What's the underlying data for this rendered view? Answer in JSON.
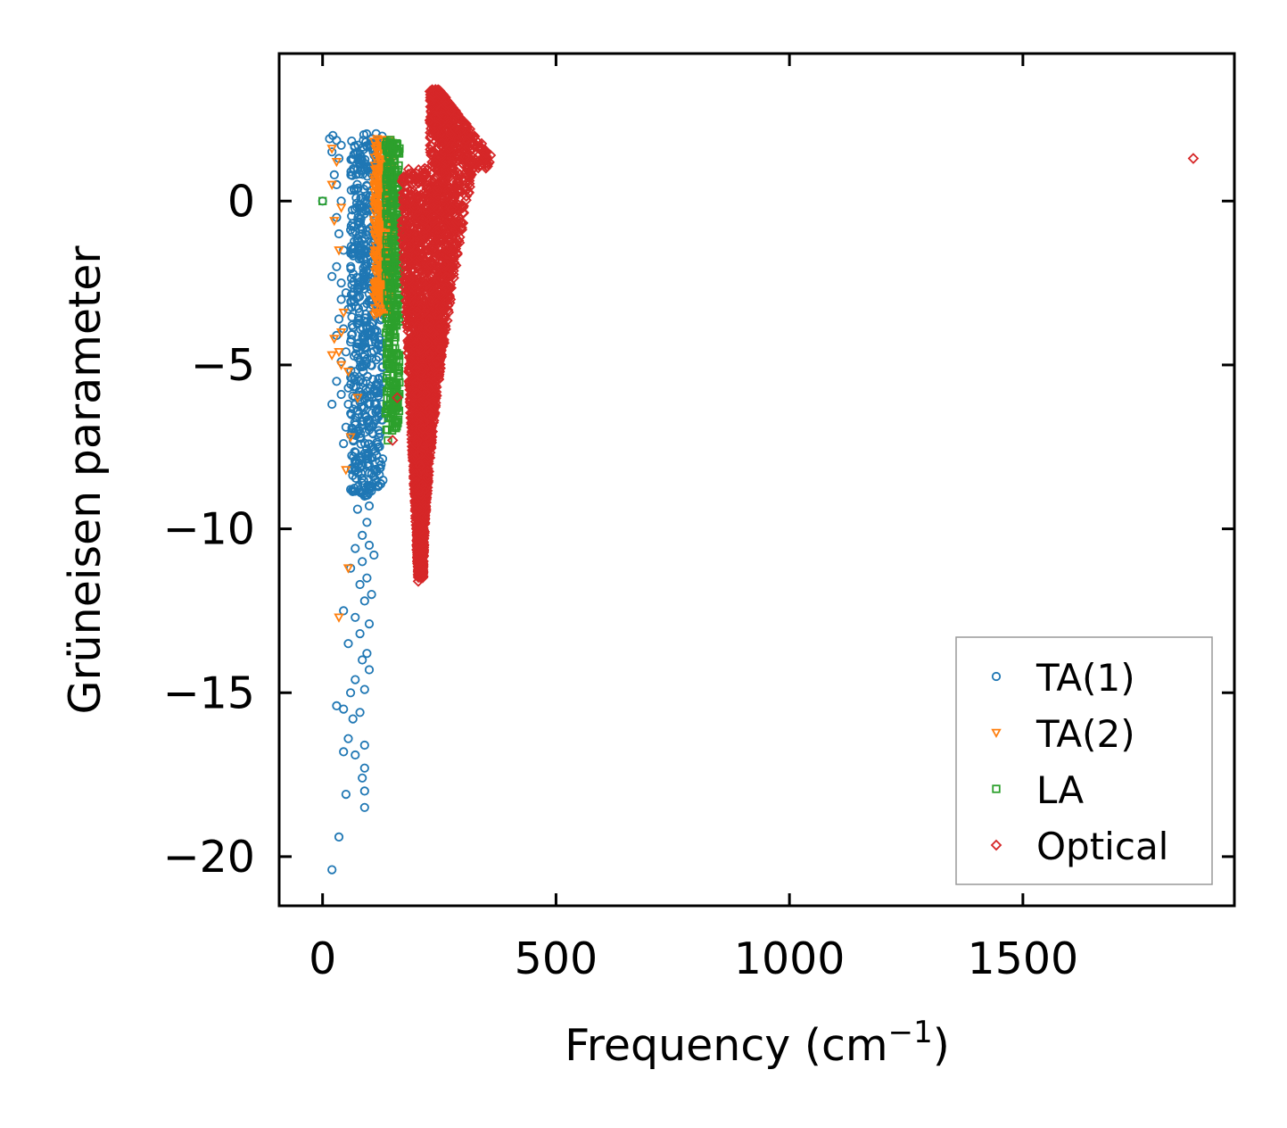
{
  "chart_data": {
    "type": "scatter",
    "title": "",
    "xlabel": "Frequency (cm",
    "xlabel_sup": "−1",
    "xlabel_close": ")",
    "ylabel": "Grüneisen parameter",
    "xlim": [
      -93,
      1953
    ],
    "ylim": [
      -21.5,
      4.5
    ],
    "xticks": [
      0,
      500,
      1000,
      1500
    ],
    "xtick_labels": [
      "0",
      "500",
      "1000",
      "1500"
    ],
    "yticks": [
      0,
      -5,
      -10,
      -15,
      -20
    ],
    "ytick_labels": [
      "0",
      "−5",
      "−10",
      "−15",
      "−20"
    ],
    "grid": false,
    "legend_position": "lower-right",
    "series": [
      {
        "name": "TA(1)",
        "label": "TA(1)",
        "marker": "circle",
        "color": "#1f77b4",
        "points": [
          [
            0,
            0
          ],
          [
            15,
            1.9
          ],
          [
            22,
            2.0
          ],
          [
            30,
            1.85
          ],
          [
            40,
            1.7
          ],
          [
            20,
            1.5
          ],
          [
            35,
            1.3
          ],
          [
            25,
            0.8
          ],
          [
            30,
            0.5
          ],
          [
            40,
            0.0
          ],
          [
            30,
            -0.5
          ],
          [
            35,
            -1.0
          ],
          [
            45,
            -1.5
          ],
          [
            30,
            -2.0
          ],
          [
            20,
            -2.3
          ],
          [
            40,
            -2.5
          ],
          [
            50,
            -2.8
          ],
          [
            40,
            -3.0
          ],
          [
            55,
            -3.3
          ],
          [
            35,
            -3.6
          ],
          [
            45,
            -3.9
          ],
          [
            30,
            -4.1
          ],
          [
            60,
            -4.3
          ],
          [
            50,
            -4.6
          ],
          [
            40,
            -4.9
          ],
          [
            70,
            -5.2
          ],
          [
            30,
            -5.5
          ],
          [
            55,
            -5.7
          ],
          [
            40,
            -5.9
          ],
          [
            20,
            -6.2
          ],
          [
            55,
            -6.2
          ],
          [
            70,
            -6.6
          ],
          [
            50,
            -6.9
          ],
          [
            80,
            -7.2
          ],
          [
            45,
            -7.4
          ],
          [
            90,
            -7.7
          ],
          [
            70,
            -8.0
          ],
          [
            100,
            -8.3
          ],
          [
            85,
            -8.6
          ],
          [
            60,
            -8.8
          ],
          [
            90,
            -9.0
          ],
          [
            100,
            -9.3
          ],
          [
            75,
            -9.4
          ],
          [
            95,
            -9.8
          ],
          [
            85,
            -10.2
          ],
          [
            100,
            -10.5
          ],
          [
            70,
            -10.6
          ],
          [
            110,
            -10.8
          ],
          [
            85,
            -11.0
          ],
          [
            60,
            -11.2
          ],
          [
            95,
            -11.5
          ],
          [
            80,
            -11.7
          ],
          [
            105,
            -12.0
          ],
          [
            90,
            -12.2
          ],
          [
            45,
            -12.5
          ],
          [
            70,
            -12.7
          ],
          [
            100,
            -12.9
          ],
          [
            80,
            -13.2
          ],
          [
            55,
            -13.5
          ],
          [
            95,
            -13.8
          ],
          [
            85,
            -14.0
          ],
          [
            100,
            -14.3
          ],
          [
            70,
            -14.6
          ],
          [
            90,
            -14.9
          ],
          [
            60,
            -15.0
          ],
          [
            30,
            -15.4
          ],
          [
            45,
            -15.5
          ],
          [
            80,
            -15.6
          ],
          [
            65,
            -15.8
          ],
          [
            55,
            -16.4
          ],
          [
            90,
            -16.6
          ],
          [
            45,
            -16.8
          ],
          [
            70,
            -16.9
          ],
          [
            90,
            -17.3
          ],
          [
            85,
            -17.6
          ],
          [
            90,
            -18.0
          ],
          [
            50,
            -18.1
          ],
          [
            90,
            -18.5
          ],
          [
            35,
            -19.4
          ],
          [
            20,
            -20.4
          ]
        ],
        "band": {
          "x_from": 60,
          "x_to": 130,
          "y_from": -9.0,
          "y_to": 2.1,
          "count": 600
        }
      },
      {
        "name": "TA(2)",
        "label": "TA(2)",
        "marker": "triangle-down",
        "color": "#ff7f0e",
        "points": [
          [
            20,
            1.6
          ],
          [
            30,
            1.2
          ],
          [
            20,
            0.5
          ],
          [
            40,
            -0.2
          ],
          [
            25,
            -0.6
          ],
          [
            35,
            -1.5
          ],
          [
            45,
            -3.4
          ],
          [
            40,
            -4.0
          ],
          [
            25,
            -4.2
          ],
          [
            35,
            -4.6
          ],
          [
            20,
            -4.7
          ],
          [
            40,
            -5.0
          ],
          [
            55,
            -5.2
          ],
          [
            75,
            -6.0
          ],
          [
            60,
            -7.2
          ],
          [
            50,
            -8.2
          ],
          [
            55,
            -11.2
          ],
          [
            35,
            -12.7
          ]
        ],
        "band": {
          "x_from": 110,
          "x_to": 150,
          "y_from": -3.5,
          "y_to": 1.9,
          "count": 350
        }
      },
      {
        "name": "LA",
        "label": "LA",
        "marker": "square",
        "color": "#2ca02c",
        "points": [
          [
            0,
            0
          ],
          [
            140,
            -7.3
          ],
          [
            150,
            -6.8
          ],
          [
            145,
            -6.2
          ],
          [
            150,
            -5.5
          ],
          [
            140,
            -5.0
          ]
        ],
        "band": {
          "x_from": 135,
          "x_to": 165,
          "y_from": -7.0,
          "y_to": 1.9,
          "count": 350
        }
      },
      {
        "name": "Optical",
        "label": "Optical",
        "marker": "diamond",
        "color": "#d62728",
        "points": [
          [
            1865,
            1.3
          ],
          [
            205,
            -11.6
          ],
          [
            150,
            -7.3
          ],
          [
            160,
            -6.0
          ]
        ],
        "band": {
          "x_from": 170,
          "x_to": 370,
          "y_from": -11.5,
          "y_to": 3.4,
          "count": 3200
        }
      }
    ]
  }
}
